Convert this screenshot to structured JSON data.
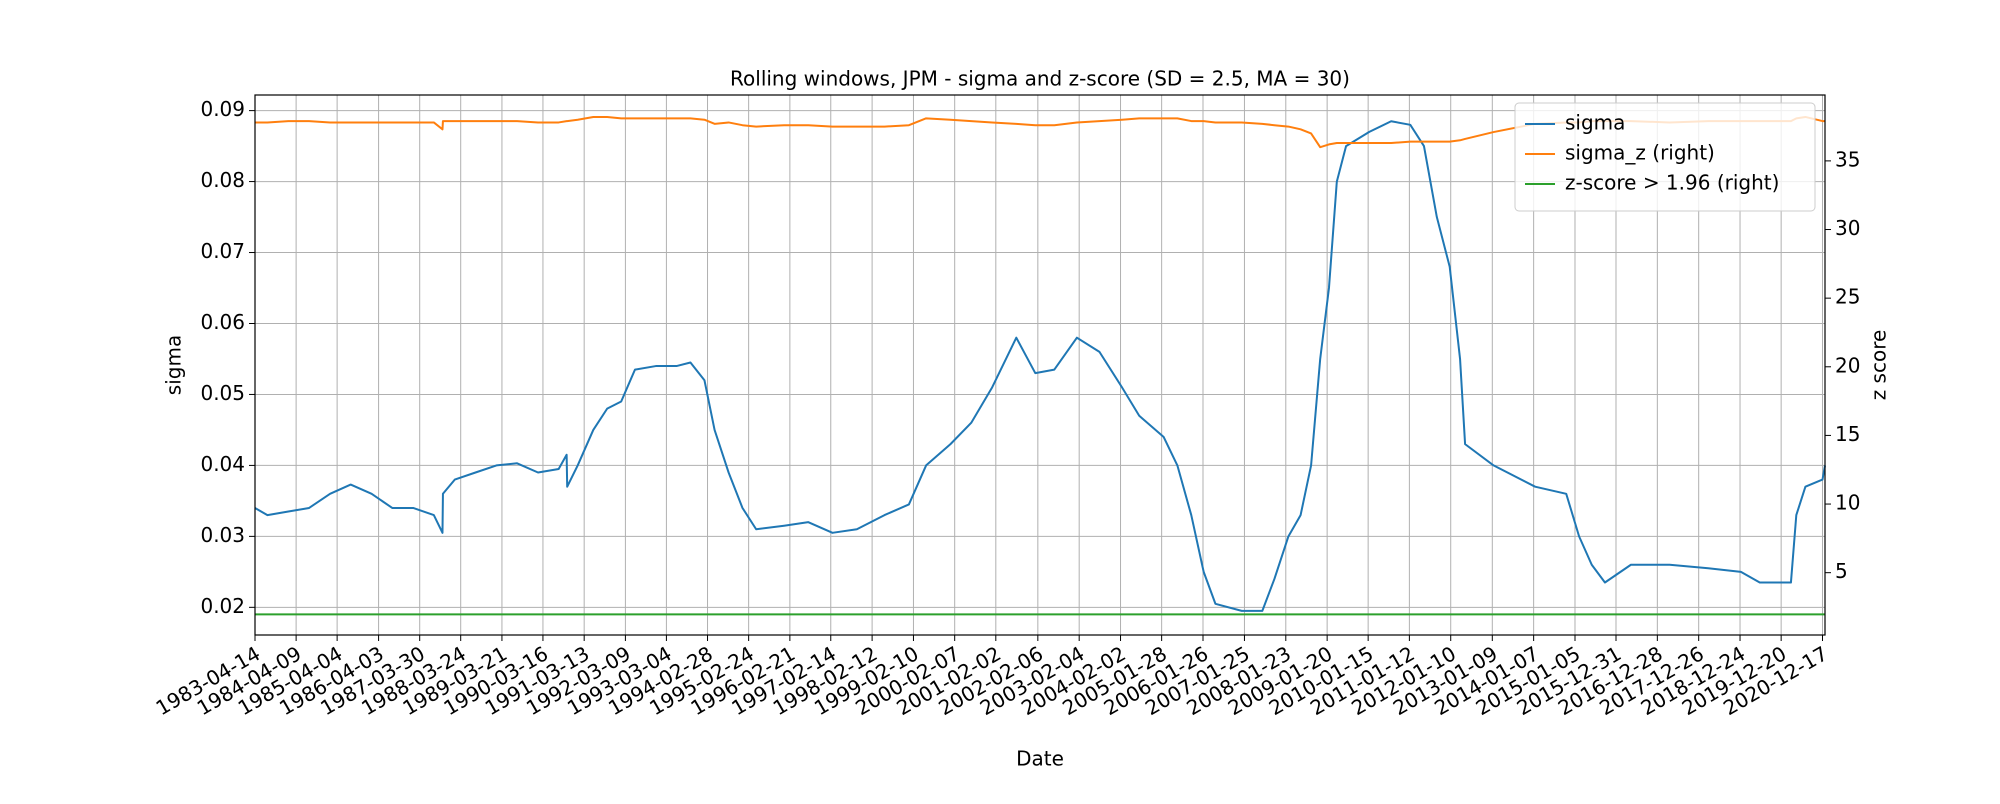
{
  "chart_data": {
    "type": "line",
    "title": "Rolling windows, JPM - sigma and z-score (SD = 2.5, MA = 30)",
    "x_label": "Date",
    "y_label": "sigma",
    "y2_label": "z score",
    "x": [
      "1983-04-14",
      "1983-08-01",
      "1984-02-01",
      "1984-08-01",
      "1985-02-01",
      "1985-08-01",
      "1986-02-01",
      "1986-08-01",
      "1987-02-01",
      "1987-08-01",
      "1987-10-16",
      "1987-10-20",
      "1988-02-01",
      "1988-08-01",
      "1989-02-01",
      "1989-08-01",
      "1990-02-01",
      "1990-08-01",
      "1990-10-10",
      "1990-10-15",
      "1991-01-15",
      "1991-06-01",
      "1991-10-01",
      "1992-02-01",
      "1992-06-01",
      "1992-12-01",
      "1993-06-01",
      "1993-10-01",
      "1994-02-01",
      "1994-05-01",
      "1994-09-01",
      "1995-01-01",
      "1995-05-01",
      "1996-01-01",
      "1996-08-01",
      "1997-03-01",
      "1997-10-01",
      "1998-06-01",
      "1999-01-01",
      "1999-06-01",
      "2000-01-01",
      "2000-07-01",
      "2001-01-01",
      "2001-08-01",
      "2002-01-15",
      "2002-07-01",
      "2003-01-15",
      "2003-08-01",
      "2004-02-15",
      "2004-07-15",
      "2005-02-15",
      "2005-06-15",
      "2005-10-15",
      "2006-02-01",
      "2006-05-15",
      "2007-01-01",
      "2007-07-01",
      "2007-10-15",
      "2008-02-15",
      "2008-06-01",
      "2008-09-01",
      "2008-11-20",
      "2009-02-05",
      "2009-04-15",
      "2009-07-05",
      "2010-01-25",
      "2010-08-05",
      "2011-01-20",
      "2011-05-20",
      "2011-09-10",
      "2012-01-01",
      "2012-04-01",
      "2012-05-15",
      "2013-01-20",
      "2014-01-20",
      "2014-10-20",
      "2015-02-10",
      "2015-06-01",
      "2015-09-25",
      "2016-05-10",
      "2017-04-15",
      "2018-03-20",
      "2019-01-01",
      "2019-06-15",
      "2020-03-15",
      "2020-05-01",
      "2020-07-20",
      "2020-12-17",
      "2021-01-08"
    ],
    "series": [
      {
        "name": "sigma",
        "color": "#1f77b4",
        "values": [
          0.034,
          0.033,
          0.0335,
          0.034,
          0.036,
          0.0373,
          0.036,
          0.034,
          0.034,
          0.033,
          0.0305,
          0.036,
          0.038,
          0.039,
          0.04,
          0.0403,
          0.039,
          0.0395,
          0.0415,
          0.037,
          0.04,
          0.045,
          0.048,
          0.049,
          0.0535,
          0.054,
          0.054,
          0.0545,
          0.052,
          0.045,
          0.039,
          0.034,
          0.031,
          0.0315,
          0.032,
          0.0305,
          0.031,
          0.033,
          0.0345,
          0.04,
          0.043,
          0.046,
          0.051,
          0.058,
          0.053,
          0.0535,
          0.058,
          0.056,
          0.051,
          0.047,
          0.044,
          0.04,
          0.033,
          0.025,
          0.0205,
          0.0195,
          0.0195,
          0.024,
          0.03,
          0.033,
          0.04,
          0.055,
          0.065,
          0.08,
          0.085,
          0.087,
          0.0885,
          0.088,
          0.085,
          0.075,
          0.068,
          0.055,
          0.043,
          0.04,
          0.037,
          0.036,
          0.03,
          0.026,
          0.0235,
          0.026,
          0.026,
          0.0255,
          0.025,
          0.0235,
          0.0235,
          0.033,
          0.037,
          0.038,
          0.04
        ]
      },
      {
        "name": "sigma_z (right)",
        "color": "#ff7f0e",
        "axis": "y2",
        "values": [
          37.8,
          37.8,
          37.9,
          37.9,
          37.8,
          37.8,
          37.8,
          37.8,
          37.8,
          37.8,
          37.3,
          37.9,
          37.9,
          37.9,
          37.9,
          37.9,
          37.8,
          37.8,
          37.9,
          37.9,
          38.0,
          38.2,
          38.2,
          38.1,
          38.1,
          38.1,
          38.1,
          38.1,
          38.0,
          37.7,
          37.8,
          37.6,
          37.5,
          37.6,
          37.6,
          37.5,
          37.5,
          37.5,
          37.6,
          38.1,
          38.0,
          37.9,
          37.8,
          37.7,
          37.6,
          37.6,
          37.8,
          37.9,
          38.0,
          38.1,
          38.1,
          38.1,
          37.9,
          37.9,
          37.8,
          37.8,
          37.7,
          37.6,
          37.5,
          37.3,
          37.0,
          36.0,
          36.2,
          36.3,
          36.3,
          36.3,
          36.3,
          36.4,
          36.4,
          36.4,
          36.4,
          36.5,
          36.6,
          37.1,
          37.7,
          37.8,
          37.8,
          37.9,
          37.9,
          37.9,
          37.8,
          37.9,
          37.9,
          37.9,
          37.9,
          38.1,
          38.2,
          37.9,
          37.9
        ]
      },
      {
        "name": "z-score > 1.96 (right)",
        "color": "#2ca02c",
        "axis": "y2",
        "values": [
          1.96,
          1.96,
          1.96,
          1.96,
          1.96,
          1.96,
          1.96,
          1.96,
          1.96,
          1.96,
          1.96,
          1.96,
          1.96,
          1.96,
          1.96,
          1.96,
          1.96,
          1.96,
          1.96,
          1.96,
          1.96,
          1.96,
          1.96,
          1.96,
          1.96,
          1.96,
          1.96,
          1.96,
          1.96,
          1.96,
          1.96,
          1.96,
          1.96,
          1.96,
          1.96,
          1.96,
          1.96,
          1.96,
          1.96,
          1.96,
          1.96,
          1.96,
          1.96,
          1.96,
          1.96,
          1.96,
          1.96,
          1.96,
          1.96,
          1.96,
          1.96,
          1.96,
          1.96,
          1.96,
          1.96,
          1.96,
          1.96,
          1.96,
          1.96,
          1.96,
          1.96,
          1.96,
          1.96,
          1.96,
          1.96,
          1.96,
          1.96,
          1.96,
          1.96,
          1.96,
          1.96,
          1.96,
          1.96,
          1.96,
          1.96,
          1.96,
          1.96,
          1.96,
          1.96,
          1.96,
          1.96,
          1.96,
          1.96,
          1.96,
          1.96,
          1.96,
          1.96,
          1.96,
          1.96
        ]
      }
    ],
    "xlim": [
      "1983-04-14",
      "2021-01-08"
    ],
    "xticks": [
      "1983-04-14",
      "1984-04-09",
      "1985-04-04",
      "1986-04-03",
      "1987-03-30",
      "1988-03-24",
      "1989-03-21",
      "1990-03-16",
      "1991-03-13",
      "1992-03-09",
      "1993-03-04",
      "1994-02-28",
      "1995-02-24",
      "1996-02-21",
      "1997-02-14",
      "1998-02-12",
      "1999-02-10",
      "2000-02-07",
      "2001-02-02",
      "2002-02-06",
      "2003-02-04",
      "2004-02-02",
      "2005-01-28",
      "2006-01-26",
      "2007-01-25",
      "2008-01-23",
      "2009-01-20",
      "2010-01-15",
      "2011-01-12",
      "2012-01-10",
      "2013-01-09",
      "2014-01-07",
      "2015-01-05",
      "2015-12-31",
      "2016-12-28",
      "2017-12-26",
      "2018-12-24",
      "2019-12-20",
      "2020-12-17"
    ],
    "ylim": [
      0.0161,
      0.0922
    ],
    "yticks": [
      0.02,
      0.03,
      0.04,
      0.05,
      0.06,
      0.07,
      0.08,
      0.09
    ],
    "y2lim": [
      0.46,
      39.8
    ],
    "y2ticks": [
      5,
      10,
      15,
      20,
      25,
      30,
      35
    ],
    "grid": true,
    "legend": "upper right"
  }
}
